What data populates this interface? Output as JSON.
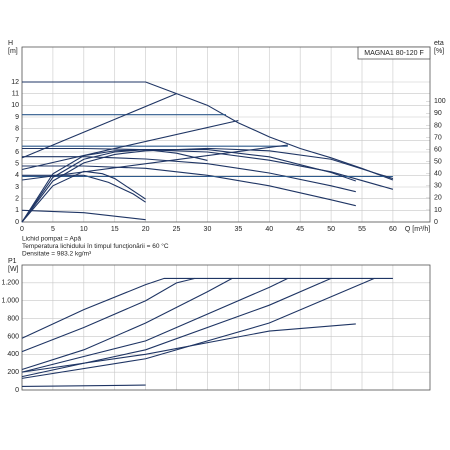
{
  "chart_data": [
    {
      "type": "line",
      "title": "MAGNA1 80-120 F",
      "ylabel": [
        "H",
        "[m]"
      ],
      "y2label": [
        "eta",
        "[%]"
      ],
      "xlabel": "Q [m³/h]",
      "notes": [
        "Lichid pompat = Apă",
        "Temperatura lichidului în timpul funcţionării = 60 °C",
        "Densitate = 983.2 kg/m³"
      ],
      "xlim": [
        0,
        66
      ],
      "ylim": [
        0,
        15
      ],
      "y2lim": [
        0,
        145
      ],
      "grid": true,
      "xticks": [
        0,
        5,
        10,
        15,
        20,
        25,
        30,
        35,
        40,
        45,
        50,
        55,
        60
      ],
      "yticks": [
        0,
        1,
        2,
        3,
        4,
        5,
        6,
        7,
        8,
        9,
        10,
        11,
        12
      ],
      "y2ticks": [
        0,
        10,
        20,
        30,
        40,
        50,
        60,
        70,
        80,
        90,
        100
      ],
      "series": [
        {
          "color": "#1f3564",
          "x": [
            0,
            20,
            25,
            30,
            35,
            40,
            45,
            50,
            55,
            60
          ],
          "values": [
            12,
            12,
            11,
            10,
            8.5,
            7.3,
            6.3,
            5.5,
            4.6,
            3.6
          ]
        },
        {
          "color": "#1f3564",
          "x": [
            0,
            10,
            20,
            30,
            40,
            50,
            60
          ],
          "values": [
            6.3,
            6.3,
            6.2,
            6,
            5.3,
            4.3,
            2.8
          ]
        },
        {
          "color": "#1f3564",
          "x": [
            0,
            10,
            20,
            30,
            40,
            50,
            54
          ],
          "values": [
            5.6,
            5.6,
            5.4,
            5,
            4.2,
            3.1,
            2.6
          ]
        },
        {
          "color": "#1f3564",
          "x": [
            0,
            10,
            20,
            30,
            40,
            50,
            54
          ],
          "values": [
            4.8,
            4.8,
            4.6,
            4,
            3.1,
            1.9,
            1.4
          ]
        },
        {
          "color": "#1f3564",
          "x": [
            0,
            10,
            14,
            18,
            20
          ],
          "values": [
            4,
            4,
            3.4,
            2.4,
            1.7
          ]
        },
        {
          "color": "#1f3564",
          "x": [
            0,
            10,
            20
          ],
          "values": [
            1,
            0.8,
            0.2
          ]
        },
        {
          "color": "#2e5a8c",
          "x": [
            0,
            33
          ],
          "values": [
            9.2,
            9.2
          ]
        },
        {
          "color": "#2e5a8c",
          "x": [
            0,
            43
          ],
          "values": [
            6.5,
            6.5
          ]
        },
        {
          "color": "#2e5a8c",
          "x": [
            0,
            60
          ],
          "values": [
            3.9,
            3.9
          ]
        },
        {
          "color": "#1f3564",
          "x": [
            0,
            25
          ],
          "values": [
            5.5,
            11
          ]
        },
        {
          "color": "#1f3564",
          "x": [
            0,
            35
          ],
          "values": [
            4.5,
            8.7
          ]
        },
        {
          "color": "#1f3564",
          "x": [
            0,
            43
          ],
          "values": [
            3.6,
            6.6
          ]
        },
        {
          "color": "#1f3564",
          "axis": "y2",
          "x": [
            0,
            5,
            10,
            15,
            20,
            30,
            40,
            50,
            60
          ],
          "values": [
            0,
            34,
            49,
            56,
            59,
            61,
            59,
            52,
            36
          ]
        },
        {
          "color": "#1f3564",
          "axis": "y2",
          "x": [
            0,
            5,
            10,
            15,
            20,
            30,
            40,
            50,
            54
          ],
          "values": [
            0,
            37,
            52,
            58,
            60,
            60,
            54,
            41,
            34
          ]
        },
        {
          "color": "#1f3564",
          "axis": "y2",
          "x": [
            0,
            5,
            10,
            15,
            20,
            25,
            30
          ],
          "values": [
            0,
            40,
            55,
            59,
            60,
            57,
            51
          ]
        },
        {
          "color": "#1f3564",
          "axis": "y2",
          "x": [
            0,
            5,
            10,
            13,
            15,
            20
          ],
          "values": [
            0,
            30,
            42,
            40,
            36,
            19
          ]
        }
      ]
    },
    {
      "type": "line",
      "ylabel": [
        "P1",
        "[W]"
      ],
      "xlim": [
        0,
        66
      ],
      "ylim": [
        0,
        1400
      ],
      "grid": true,
      "xticks": [
        0,
        5,
        10,
        15,
        20,
        25,
        30,
        35,
        40,
        45,
        50,
        55,
        60
      ],
      "yticks": [
        0,
        200,
        400,
        600,
        800,
        {
          "value": 1000,
          "label": "1.000"
        },
        {
          "value": 1200,
          "label": "1.200"
        }
      ],
      "series": [
        {
          "color": "#1f3564",
          "x": [
            0,
            10,
            20,
            23,
            60
          ],
          "values": [
            580,
            900,
            1180,
            1250,
            1250
          ]
        },
        {
          "color": "#1f3564",
          "x": [
            0,
            10,
            20,
            25,
            28
          ],
          "values": [
            430,
            700,
            1000,
            1200,
            1250
          ]
        },
        {
          "color": "#1f3564",
          "x": [
            0,
            10,
            20,
            30,
            34
          ],
          "values": [
            230,
            450,
            750,
            1100,
            1250
          ]
        },
        {
          "color": "#1f3564",
          "x": [
            0,
            20,
            40,
            43
          ],
          "values": [
            200,
            550,
            1150,
            1250
          ]
        },
        {
          "color": "#1f3564",
          "x": [
            0,
            20,
            40,
            50
          ],
          "values": [
            150,
            450,
            950,
            1250
          ]
        },
        {
          "color": "#1f3564",
          "x": [
            0,
            20,
            40,
            57
          ],
          "values": [
            130,
            350,
            750,
            1250
          ]
        },
        {
          "color": "#1f3564",
          "x": [
            0,
            20,
            40,
            54
          ],
          "values": [
            200,
            400,
            660,
            740
          ]
        },
        {
          "color": "#1f3564",
          "x": [
            0,
            20
          ],
          "values": [
            40,
            55
          ]
        }
      ]
    }
  ]
}
